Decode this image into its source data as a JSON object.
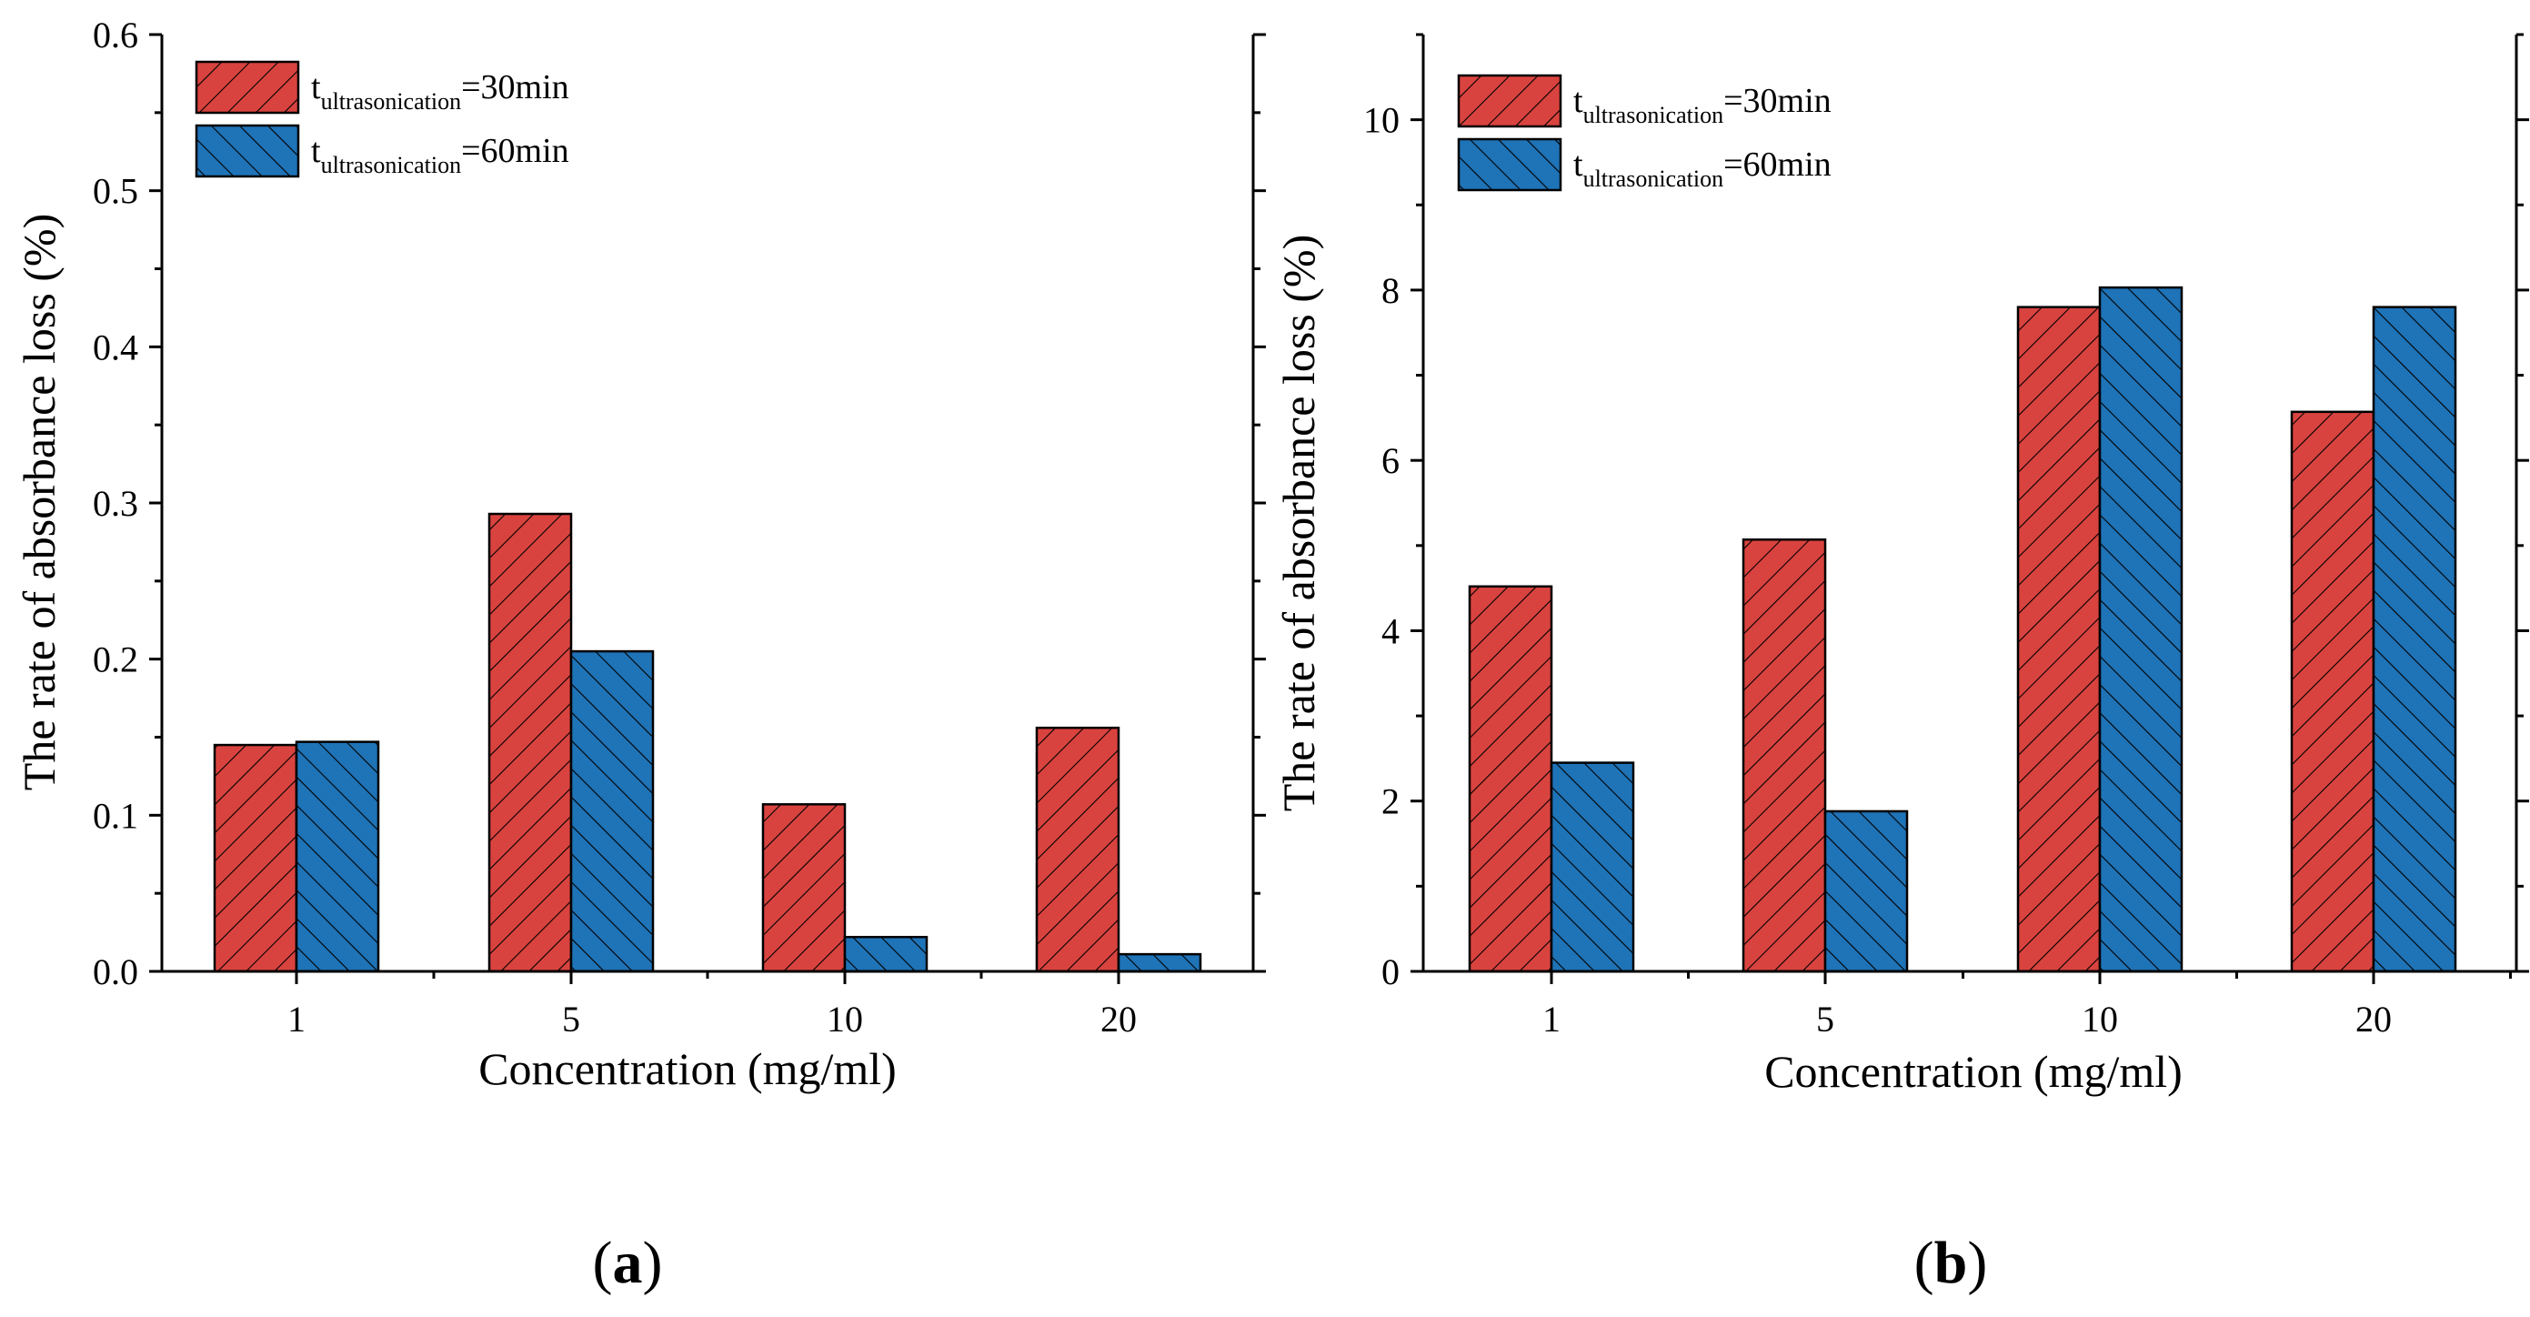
{
  "colors": {
    "series_30": "#d9433f",
    "series_60": "#1f73b7",
    "axis": "#000000"
  },
  "chart_data": [
    {
      "type": "bar",
      "panel": "a",
      "panel_label": {
        "open": "(",
        "letter": "a",
        "close": ")"
      },
      "title": "",
      "xlabel": "Concentration (mg/ml)",
      "ylabel": "The rate of absorbance loss (%)",
      "categories": [
        "1",
        "5",
        "10",
        "20"
      ],
      "ylim": [
        0,
        0.6
      ],
      "yticks": [
        "0.0",
        "0.1",
        "0.2",
        "0.3",
        "0.4",
        "0.5",
        "0.6"
      ],
      "grid": false,
      "legend_position": "top-left",
      "series": [
        {
          "name": "t_ultrasonication=30min",
          "legend_main": "t",
          "legend_sub": "ultrasonication",
          "legend_suffix": "=30min",
          "color": "#d9433f",
          "hatch": "forward",
          "values": [
            0.145,
            0.293,
            0.107,
            0.156
          ]
        },
        {
          "name": "t_ultrasonication=60min",
          "legend_main": "t",
          "legend_sub": "ultrasonication",
          "legend_suffix": "=60min",
          "color": "#1f73b7",
          "hatch": "backward",
          "values": [
            0.147,
            0.205,
            0.022,
            0.011
          ]
        }
      ]
    },
    {
      "type": "bar",
      "panel": "b",
      "panel_label": {
        "open": "(",
        "letter": "b",
        "close": ")"
      },
      "title": "",
      "xlabel": "Concentration (mg/ml)",
      "ylabel": "The rate of absorbance loss (%)",
      "categories": [
        "1",
        "5",
        "10",
        "20"
      ],
      "ylim": [
        0,
        11
      ],
      "yticks": [
        "0",
        "2",
        "4",
        "6",
        "8",
        "10"
      ],
      "grid": false,
      "legend_position": "top-left",
      "series": [
        {
          "name": "t_ultrasonication=30min",
          "legend_main": "t",
          "legend_sub": "ultrasonication",
          "legend_suffix": "=30min",
          "color": "#d9433f",
          "hatch": "forward",
          "values": [
            4.52,
            5.07,
            7.8,
            6.57
          ]
        },
        {
          "name": "t_ultrasonication=60min",
          "legend_main": "t",
          "legend_sub": "ultrasonication",
          "legend_suffix": "=60min",
          "color": "#1f73b7",
          "hatch": "backward",
          "values": [
            2.45,
            1.88,
            8.03,
            7.8
          ]
        }
      ]
    }
  ]
}
